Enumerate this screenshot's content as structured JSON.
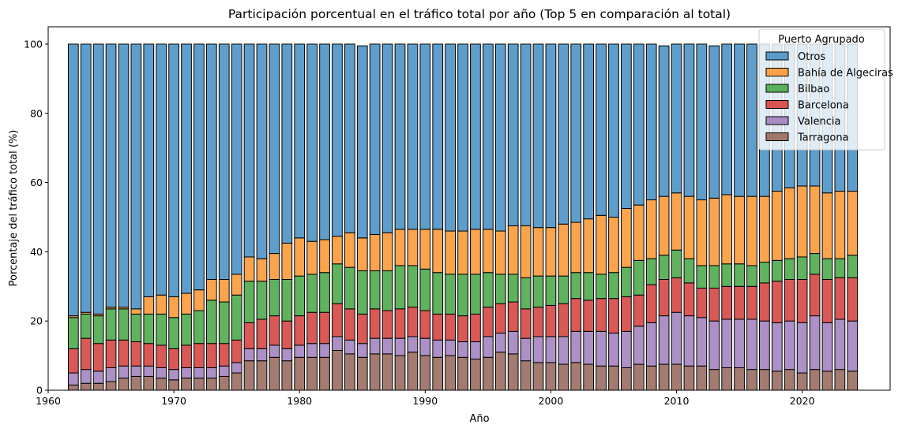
{
  "chart_data": {
    "type": "bar",
    "stacked": true,
    "title": "Participación porcentual en el tráfico total por año (Top 5 en comparación al total)",
    "xlabel": "Año",
    "ylabel": "Porcentaje del tráfico total (%)",
    "xlim": [
      1960,
      2027
    ],
    "ylim": [
      0,
      105
    ],
    "xticks": [
      1960,
      1970,
      1980,
      1990,
      2000,
      2010,
      2020
    ],
    "yticks": [
      0,
      20,
      40,
      60,
      80,
      100
    ],
    "grid": false,
    "legend": {
      "title": "Puerto Agrupado",
      "position": "top-right"
    },
    "x": [
      1962,
      1963,
      1964,
      1965,
      1966,
      1967,
      1968,
      1969,
      1970,
      1971,
      1972,
      1973,
      1974,
      1975,
      1976,
      1977,
      1978,
      1979,
      1980,
      1981,
      1982,
      1983,
      1984,
      1985,
      1986,
      1987,
      1988,
      1989,
      1990,
      1991,
      1992,
      1993,
      1994,
      1995,
      1996,
      1997,
      1998,
      1999,
      2000,
      2001,
      2002,
      2003,
      2004,
      2005,
      2006,
      2007,
      2008,
      2009,
      2010,
      2011,
      2012,
      2013,
      2014,
      2015,
      2016,
      2017,
      2018,
      2019,
      2020,
      2021,
      2022,
      2023,
      2024
    ],
    "series": [
      {
        "name": "Tarragona",
        "color": "#a1776b",
        "values": [
          1.5,
          2.0,
          2.0,
          2.5,
          3.5,
          4.0,
          4.0,
          3.5,
          3.0,
          3.5,
          3.5,
          3.5,
          4.0,
          5.0,
          8.5,
          8.5,
          9.5,
          8.5,
          9.5,
          9.5,
          9.5,
          11.5,
          10.5,
          9.5,
          10.5,
          10.5,
          10.0,
          11.0,
          10.0,
          9.5,
          10.0,
          9.5,
          9.0,
          9.5,
          11.0,
          10.5,
          8.5,
          8.0,
          8.0,
          7.5,
          8.0,
          7.5,
          7.0,
          7.0,
          6.5,
          7.5,
          7.0,
          7.5,
          7.5,
          7.0,
          7.0,
          6.0,
          6.5,
          6.5,
          6.0,
          6.0,
          5.5,
          6.0,
          5.0,
          6.0,
          5.5,
          6.0,
          5.5
        ]
      },
      {
        "name": "Valencia",
        "color": "#a98cc4",
        "values": [
          3.5,
          4.0,
          3.5,
          4.0,
          3.5,
          3.0,
          3.0,
          3.0,
          3.0,
          3.0,
          3.0,
          3.0,
          3.0,
          3.0,
          3.5,
          3.5,
          3.5,
          3.5,
          3.5,
          4.0,
          4.0,
          4.0,
          4.0,
          4.0,
          4.5,
          4.5,
          5.0,
          4.5,
          5.0,
          5.0,
          4.5,
          4.5,
          5.0,
          6.0,
          5.5,
          6.5,
          6.5,
          7.5,
          7.5,
          8.0,
          9.0,
          9.5,
          10.0,
          9.5,
          10.5,
          11.0,
          12.5,
          14.0,
          15.0,
          14.5,
          14.0,
          14.0,
          14.0,
          14.0,
          14.5,
          14.0,
          14.0,
          14.0,
          14.5,
          15.5,
          14.0,
          14.5,
          14.5
        ]
      },
      {
        "name": "Barcelona",
        "color": "#d85452",
        "values": [
          7.0,
          9.0,
          8.0,
          8.0,
          7.5,
          7.0,
          6.5,
          6.5,
          6.0,
          6.5,
          7.0,
          7.0,
          6.5,
          6.5,
          7.5,
          8.5,
          8.5,
          8.0,
          8.5,
          9.0,
          9.0,
          9.5,
          9.0,
          8.5,
          8.5,
          8.0,
          8.5,
          8.5,
          8.0,
          7.5,
          7.5,
          7.5,
          8.0,
          8.5,
          8.5,
          8.5,
          8.5,
          8.5,
          9.0,
          9.5,
          9.5,
          9.0,
          9.5,
          10.0,
          10.0,
          9.0,
          11.0,
          10.5,
          10.0,
          9.5,
          8.5,
          9.5,
          9.5,
          9.5,
          9.5,
          11.0,
          12.0,
          12.0,
          12.5,
          12.0,
          12.5,
          12.0,
          12.5
        ]
      },
      {
        "name": "Bilbao",
        "color": "#5bb05a",
        "values": [
          9.0,
          7.0,
          8.0,
          9.0,
          9.0,
          8.0,
          8.5,
          9.0,
          9.0,
          9.0,
          9.5,
          12.5,
          12.0,
          13.0,
          12.0,
          11.0,
          10.5,
          12.0,
          11.5,
          11.0,
          11.5,
          11.5,
          12.0,
          12.5,
          11.0,
          11.5,
          12.5,
          12.0,
          12.0,
          12.0,
          11.5,
          12.0,
          11.5,
          10.0,
          8.5,
          8.0,
          9.0,
          9.0,
          8.5,
          8.0,
          7.5,
          8.0,
          7.0,
          7.5,
          8.5,
          10.0,
          7.5,
          7.0,
          8.0,
          7.0,
          6.5,
          6.5,
          6.5,
          6.5,
          6.0,
          6.0,
          6.0,
          6.0,
          6.5,
          6.0,
          6.0,
          5.5,
          6.5
        ]
      },
      {
        "name": "Bahía de Algeciras",
        "color": "#fba148",
        "values": [
          0.5,
          0.5,
          0.5,
          0.5,
          0.5,
          1.5,
          5.0,
          5.5,
          6.0,
          6.0,
          6.0,
          6.0,
          6.5,
          6.0,
          7.0,
          6.5,
          7.5,
          10.5,
          11.0,
          9.5,
          9.5,
          8.0,
          10.0,
          9.5,
          10.5,
          11.0,
          10.5,
          10.5,
          11.5,
          12.5,
          12.5,
          12.5,
          13.0,
          12.5,
          12.5,
          14.0,
          15.0,
          14.0,
          14.0,
          15.0,
          14.5,
          15.5,
          17.0,
          16.0,
          17.0,
          16.0,
          17.0,
          17.0,
          16.5,
          18.0,
          19.0,
          19.5,
          20.0,
          19.5,
          20.0,
          19.0,
          20.0,
          20.5,
          20.5,
          19.5,
          19.0,
          19.5,
          18.5
        ]
      },
      {
        "name": "Otros",
        "color": "#5a9bc9",
        "values": [
          78.5,
          77.5,
          78.0,
          76.0,
          76.0,
          76.5,
          73.0,
          72.5,
          73.0,
          72.0,
          71.0,
          68.0,
          68.0,
          66.5,
          61.5,
          62.0,
          60.5,
          57.5,
          56.0,
          57.0,
          56.5,
          55.5,
          54.5,
          55.5,
          55.0,
          54.5,
          53.5,
          53.5,
          53.5,
          53.5,
          54.0,
          54.0,
          53.5,
          53.5,
          54.0,
          52.5,
          52.5,
          53.0,
          53.0,
          52.0,
          51.5,
          50.5,
          49.5,
          50.0,
          47.5,
          46.5,
          45.0,
          43.5,
          43.0,
          44.0,
          45.0,
          44.0,
          43.5,
          44.0,
          44.0,
          44.0,
          42.5,
          41.5,
          41.0,
          41.0,
          43.0,
          42.5,
          42.5
        ]
      }
    ]
  }
}
